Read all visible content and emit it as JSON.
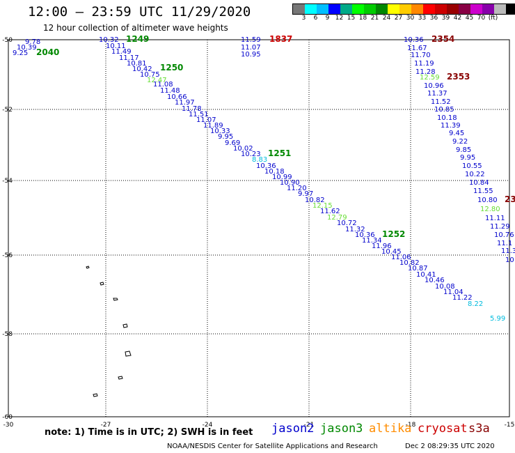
{
  "header": {
    "title": "12:00 – 23:59 UTC 11/29/2020",
    "subtitle": "12 hour collection of altimeter wave heights"
  },
  "colorbar": {
    "colors": [
      "#777777",
      "#00ffff",
      "#00bfff",
      "#0000ff",
      "#00aa88",
      "#00ff00",
      "#00cc00",
      "#008800",
      "#ffff00",
      "#ffcc00",
      "#ff8800",
      "#ff0000",
      "#cc0000",
      "#990000",
      "#880044",
      "#cc00cc",
      "#8800aa",
      "#bbbbbb",
      "#000000"
    ],
    "labels": [
      "3",
      "6",
      "9",
      "12",
      "15",
      "18",
      "21",
      "24",
      "27",
      "30",
      "33",
      "36",
      "39",
      "42",
      "45",
      "70",
      "(ft)"
    ]
  },
  "axes": {
    "lon_ticks": [
      "-30",
      "-27",
      "-24",
      "-21",
      "-18",
      "-15"
    ],
    "lat_ticks": [
      "-50",
      "-52",
      "-54",
      "-56",
      "-58",
      "-60"
    ]
  },
  "colors": {
    "jason2": "#0000cc",
    "jason3": "#008800",
    "altika": "#ff8c00",
    "cryosat": "#cc0000",
    "s3a": "#880000",
    "light_green": "#66dd33",
    "cyan": "#00bbdd",
    "dark_green": "#008800",
    "maroon": "#880000"
  },
  "labels": [
    {
      "t": "9.78",
      "c": "jason2"
    },
    {
      "t": "10.39",
      "c": "jason2"
    },
    {
      "t": "9.25",
      "c": "jason2"
    },
    {
      "t": "2040",
      "c": "dark_green"
    },
    {
      "t": "10.32",
      "c": "jason2"
    },
    {
      "t": "1249",
      "c": "dark_green"
    },
    {
      "t": "10.11",
      "c": "jason2"
    },
    {
      "t": "11.49",
      "c": "jason2"
    },
    {
      "t": "11.17",
      "c": "jason2"
    },
    {
      "t": "10.81",
      "c": "jason2"
    },
    {
      "t": "1250",
      "c": "dark_green"
    },
    {
      "t": "10.42",
      "c": "jason2"
    },
    {
      "t": "10.75",
      "c": "jason2"
    },
    {
      "t": "12.47",
      "c": "light_green"
    },
    {
      "t": "11.08",
      "c": "jason2"
    },
    {
      "t": "11.48",
      "c": "jason2"
    },
    {
      "t": "10.66",
      "c": "jason2"
    },
    {
      "t": "11.97",
      "c": "jason2"
    },
    {
      "t": "11.78",
      "c": "jason2"
    },
    {
      "t": "11.51",
      "c": "jason2"
    },
    {
      "t": "11.07",
      "c": "jason2"
    },
    {
      "t": "11.89",
      "c": "jason2"
    },
    {
      "t": "10.33",
      "c": "jason2"
    },
    {
      "t": "9.95",
      "c": "jason2"
    },
    {
      "t": "9.69",
      "c": "jason2"
    },
    {
      "t": "10.02",
      "c": "jason2"
    },
    {
      "t": "10.23",
      "c": "jason2"
    },
    {
      "t": "1251",
      "c": "dark_green"
    },
    {
      "t": "8.83",
      "c": "cyan"
    },
    {
      "t": "10.36",
      "c": "jason2"
    },
    {
      "t": "10.18",
      "c": "jason2"
    },
    {
      "t": "10.99",
      "c": "jason2"
    },
    {
      "t": "10.90",
      "c": "jason2"
    },
    {
      "t": "11.20",
      "c": "jason2"
    },
    {
      "t": "9.97",
      "c": "jason2"
    },
    {
      "t": "10.82",
      "c": "jason2"
    },
    {
      "t": "12.15",
      "c": "light_green"
    },
    {
      "t": "11.62",
      "c": "jason2"
    },
    {
      "t": "12.79",
      "c": "light_green"
    },
    {
      "t": "10.72",
      "c": "jason2"
    },
    {
      "t": "11.32",
      "c": "jason2"
    },
    {
      "t": "10.36",
      "c": "jason2"
    },
    {
      "t": "1252",
      "c": "dark_green"
    },
    {
      "t": "11.34",
      "c": "jason2"
    },
    {
      "t": "11.96",
      "c": "jason2"
    },
    {
      "t": "10.45",
      "c": "jason2"
    },
    {
      "t": "11.06",
      "c": "jason2"
    },
    {
      "t": "10.82",
      "c": "jason2"
    },
    {
      "t": "10.87",
      "c": "jason2"
    },
    {
      "t": "10.41",
      "c": "jason2"
    },
    {
      "t": "10.46",
      "c": "jason2"
    },
    {
      "t": "10.08",
      "c": "jason2"
    },
    {
      "t": "11.04",
      "c": "jason2"
    },
    {
      "t": "11.22",
      "c": "jason2"
    },
    {
      "t": "8.22",
      "c": "cyan"
    },
    {
      "t": "5.99",
      "c": "cyan"
    },
    {
      "t": "11.59",
      "c": "jason2"
    },
    {
      "t": "1837",
      "c": "cryosat"
    },
    {
      "t": "11.07",
      "c": "jason2"
    },
    {
      "t": "10.95",
      "c": "jason2"
    },
    {
      "t": "10.36",
      "c": "jason2"
    },
    {
      "t": "2354",
      "c": "maroon"
    },
    {
      "t": "11.67",
      "c": "jason2"
    },
    {
      "t": "11.70",
      "c": "jason2"
    },
    {
      "t": "11.19",
      "c": "jason2"
    },
    {
      "t": "11.28",
      "c": "jason2"
    },
    {
      "t": "12.59",
      "c": "light_green"
    },
    {
      "t": "2353",
      "c": "maroon"
    },
    {
      "t": "10.96",
      "c": "jason2"
    },
    {
      "t": "11.37",
      "c": "jason2"
    },
    {
      "t": "11.52",
      "c": "jason2"
    },
    {
      "t": "10.85",
      "c": "jason2"
    },
    {
      "t": "10.18",
      "c": "jason2"
    },
    {
      "t": "11.39",
      "c": "jason2"
    },
    {
      "t": "9.45",
      "c": "jason2"
    },
    {
      "t": "9.22",
      "c": "jason2"
    },
    {
      "t": "9.85",
      "c": "jason2"
    },
    {
      "t": "9.95",
      "c": "jason2"
    },
    {
      "t": "10.55",
      "c": "jason2"
    },
    {
      "t": "10.22",
      "c": "jason2"
    },
    {
      "t": "10.84",
      "c": "jason2"
    },
    {
      "t": "11.55",
      "c": "jason2"
    },
    {
      "t": "10.80",
      "c": "jason2"
    },
    {
      "t": "23",
      "c": "maroon"
    },
    {
      "t": "12.80",
      "c": "light_green"
    },
    {
      "t": "11.11",
      "c": "jason2"
    },
    {
      "t": "11.29",
      "c": "jason2"
    },
    {
      "t": "10.76",
      "c": "jason2"
    },
    {
      "t": "11.1",
      "c": "jason2"
    },
    {
      "t": "11.3",
      "c": "jason2"
    },
    {
      "t": "10",
      "c": "jason2"
    }
  ],
  "footer": {
    "note": "note: 1) Time is in UTC; 2) SWH is in feet",
    "legend": [
      "jason2",
      "jason3",
      "altika",
      "cryosat",
      "s3a"
    ],
    "credit": "NOAA/NESDIS Center for Satellite Applications and Research",
    "timestamp": "Dec  2 08:29:35 UTC 2020"
  }
}
